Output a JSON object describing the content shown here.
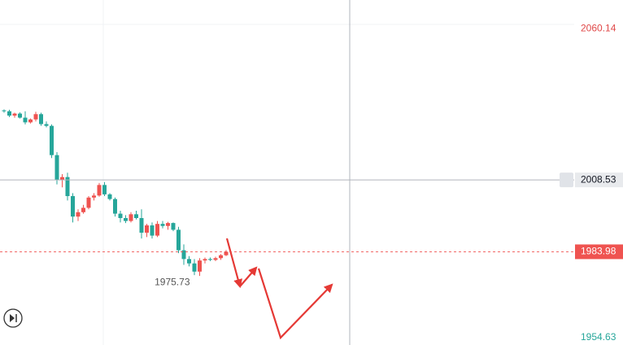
{
  "chart_data": {
    "type": "candlestick",
    "open": [
      2032.3,
      2032.0,
      2030.5,
      2031.2,
      2029.8,
      2028.2,
      2029.2,
      2031.0,
      2027.6,
      2027.0,
      2017.0,
      2008.5,
      2009.5,
      2003.0,
      1996.0,
      1997.5,
      1999.0,
      2002.5,
      2003.2,
      2006.8,
      2003.6,
      2002.0,
      1997.0,
      1995.5,
      1994.5,
      1996.8,
      1995.5,
      1990.5,
      1993.0,
      1989.5,
      1993.5,
      1992.8,
      1993.8,
      1991.5,
      1984.5,
      1981.5,
      1980.0,
      1977.2,
      1981.0,
      1981.5,
      1981.2,
      1981.8,
      1982.8
    ],
    "high": [
      2032.6,
      2032.5,
      2031.5,
      2031.6,
      2032.0,
      2029.5,
      2031.8,
      2031.5,
      2028.5,
      2027.5,
      2018.0,
      2010.5,
      2011.0,
      2004.0,
      1998.5,
      2000.0,
      2003.0,
      2004.0,
      2007.5,
      2007.8,
      2004.0,
      2002.5,
      1998.0,
      1996.5,
      1997.5,
      1998.0,
      1998.5,
      1993.5,
      1994.0,
      1994.5,
      1994.5,
      1994.2,
      1994.0,
      1992.5,
      1986.5,
      1982.5,
      1981.5,
      1981.8,
      1982.0,
      1982.0,
      1982.3,
      1983.2,
      1984.6
    ],
    "low": [
      2031.5,
      2030.0,
      2029.8,
      2029.5,
      2027.5,
      2027.8,
      2028.5,
      2027.0,
      2026.5,
      2016.0,
      2007.0,
      2006.0,
      2001.5,
      1994.0,
      1994.5,
      1997.0,
      1998.5,
      2001.5,
      2002.8,
      2003.0,
      2001.5,
      1996.0,
      1994.0,
      1993.8,
      1994.0,
      1995.0,
      1988.5,
      1989.0,
      1988.5,
      1989.0,
      1992.0,
      1991.5,
      1991.0,
      1983.5,
      1979.5,
      1979.0,
      1976.0,
      1975.73,
      1980.0,
      1980.8,
      1980.8,
      1981.2,
      1982.5
    ],
    "close": [
      2032.0,
      2030.5,
      2031.2,
      2029.8,
      2028.2,
      2029.2,
      2031.0,
      2027.6,
      2027.0,
      2017.0,
      2008.5,
      2009.5,
      2003.0,
      1996.0,
      1997.5,
      1999.0,
      2002.5,
      2003.2,
      2006.8,
      2003.6,
      2002.0,
      1997.0,
      1995.5,
      1994.5,
      1996.8,
      1995.5,
      1990.5,
      1993.0,
      1989.5,
      1993.5,
      1992.8,
      1993.8,
      1991.5,
      1984.5,
      1981.5,
      1980.0,
      1977.2,
      1981.0,
      1981.5,
      1981.2,
      1981.8,
      1982.8,
      1983.98
    ],
    "up_color": "#ef5350",
    "down_color": "#26a69a",
    "ylim": [
      1954.63,
      2070
    ],
    "yticks": [
      2060.14,
      1954.63
    ],
    "low_label": 1975.73,
    "crosshair_price": 2008.53,
    "current_price": 1983.98
  }
}
